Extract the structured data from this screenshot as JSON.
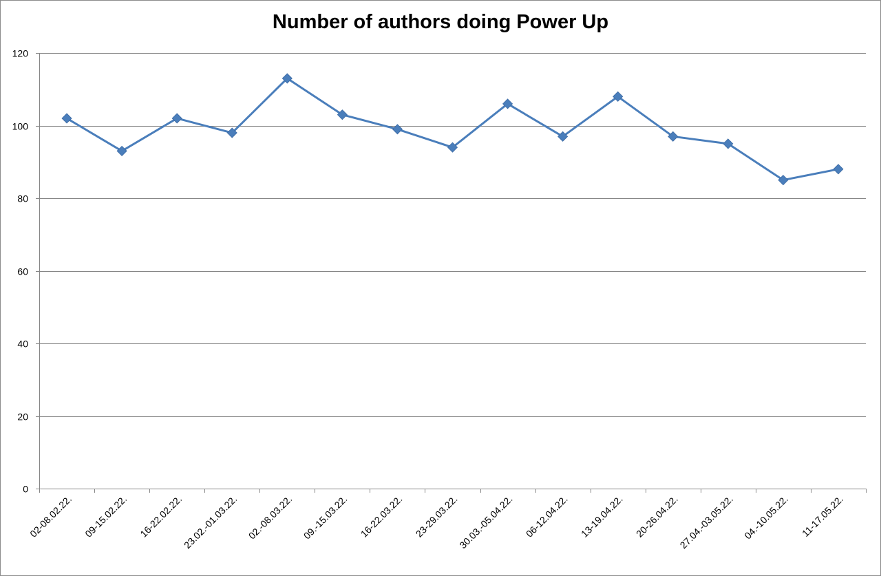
{
  "chart_data": {
    "type": "line",
    "title": "Number of authors doing Power Up",
    "xlabel": "",
    "ylabel": "",
    "ylim": [
      0,
      120
    ],
    "yticks": [
      0,
      20,
      40,
      60,
      80,
      100,
      120
    ],
    "grid": true,
    "legend": "none",
    "categories": [
      "02-08.02.22.",
      "09-15.02.22.",
      "16-22.02.22.",
      "23.02.-01.03.22.",
      "02.-08.03.22.",
      "09.-15.03.22.",
      "16-22.03.22.",
      "23-29.03.22.",
      "30.03.-05.04.22.",
      "06-12.04.22.",
      "13-19.04.22.",
      "20-26.04.22.",
      "27.04.-03.05.22.",
      "04.-10.05.22.",
      "11-17.05.22."
    ],
    "series": [
      {
        "values": [
          102,
          93,
          102,
          98,
          113,
          103,
          99,
          94,
          106,
          97,
          108,
          97,
          95,
          85,
          88
        ],
        "color": "#4a7ebb",
        "marker": "diamond"
      }
    ]
  }
}
